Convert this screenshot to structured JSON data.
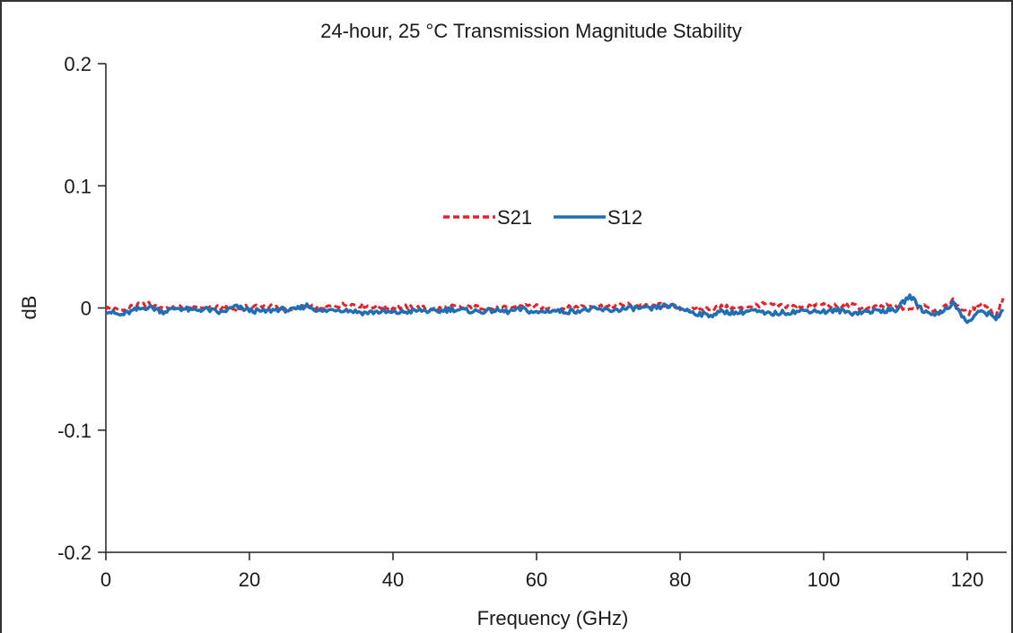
{
  "chart_data": {
    "type": "line",
    "title": "24-hour, 25 °C Transmission Magnitude Stability",
    "xlabel": "Frequency (GHz)",
    "ylabel": "dB",
    "xlim": [
      0,
      125
    ],
    "ylim": [
      -0.2,
      0.2
    ],
    "x_ticks": [
      0,
      20,
      40,
      60,
      80,
      100,
      120
    ],
    "y_ticks": [
      0.2,
      0.1,
      0,
      -0.1,
      -0.2
    ],
    "y_tick_labels": [
      "0.2",
      "0.1",
      "0",
      "-0.1",
      "-0.2"
    ],
    "x_tick_labels": [
      "0",
      "20",
      "40",
      "60",
      "80",
      "100",
      "120"
    ],
    "grid": false,
    "legend_position": "center",
    "series": [
      {
        "name": "S21",
        "color": "#e8202a",
        "style": "dashed",
        "x": [
          0,
          2,
          4,
          6,
          8,
          10,
          12,
          14,
          16,
          18,
          20,
          22,
          24,
          26,
          28,
          30,
          32,
          34,
          36,
          38,
          40,
          42,
          44,
          46,
          48,
          50,
          52,
          54,
          56,
          58,
          60,
          62,
          64,
          66,
          68,
          70,
          72,
          74,
          76,
          78,
          80,
          82,
          84,
          86,
          88,
          90,
          92,
          94,
          96,
          98,
          100,
          102,
          104,
          106,
          108,
          110,
          112,
          114,
          116,
          118,
          120,
          122,
          124,
          125
        ],
        "values": [
          0.0,
          -0.002,
          0.002,
          0.003,
          0.0,
          0.001,
          -0.001,
          0.001,
          0.0,
          -0.001,
          0.001,
          0.002,
          0.0,
          -0.002,
          0.001,
          0.0,
          0.002,
          0.003,
          0.002,
          0.001,
          0.0,
          0.001,
          0.0,
          -0.001,
          0.001,
          0.0,
          0.001,
          -0.001,
          0.0,
          0.002,
          0.001,
          -0.001,
          0.0,
          0.001,
          0.002,
          0.001,
          0.003,
          0.002,
          0.001,
          0.003,
          0.0,
          -0.002,
          0.0,
          0.001,
          -0.001,
          0.002,
          0.003,
          0.002,
          0.001,
          0.002,
          0.003,
          0.001,
          0.002,
          -0.001,
          0.001,
          0.002,
          -0.002,
          0.003,
          -0.004,
          0.006,
          -0.005,
          0.005,
          -0.006,
          0.008
        ]
      },
      {
        "name": "S12",
        "color": "#1f6fb4",
        "style": "solid",
        "x": [
          0,
          2,
          4,
          6,
          8,
          10,
          12,
          14,
          16,
          18,
          20,
          22,
          24,
          26,
          28,
          30,
          32,
          34,
          36,
          38,
          40,
          42,
          44,
          46,
          48,
          50,
          52,
          54,
          56,
          58,
          60,
          62,
          64,
          66,
          68,
          70,
          72,
          74,
          76,
          78,
          80,
          82,
          84,
          86,
          88,
          90,
          92,
          94,
          96,
          98,
          100,
          102,
          104,
          106,
          108,
          110,
          112,
          114,
          116,
          118,
          120,
          122,
          124,
          125
        ],
        "values": [
          -0.002,
          -0.006,
          -0.002,
          0.001,
          -0.003,
          0.0,
          -0.002,
          -0.001,
          -0.004,
          0.001,
          -0.002,
          -0.003,
          -0.001,
          -0.002,
          0.002,
          -0.003,
          -0.001,
          -0.002,
          -0.004,
          -0.003,
          -0.004,
          -0.003,
          -0.002,
          -0.003,
          -0.001,
          -0.002,
          -0.003,
          -0.002,
          -0.003,
          -0.001,
          -0.004,
          -0.002,
          -0.003,
          -0.002,
          -0.001,
          -0.002,
          -0.001,
          0.0,
          -0.001,
          0.002,
          0.0,
          -0.004,
          -0.006,
          -0.003,
          -0.004,
          -0.002,
          -0.005,
          -0.004,
          -0.003,
          -0.002,
          -0.003,
          -0.002,
          -0.004,
          -0.003,
          -0.002,
          -0.002,
          0.01,
          -0.003,
          -0.005,
          0.004,
          -0.012,
          -0.002,
          -0.008,
          -0.003
        ]
      }
    ]
  }
}
